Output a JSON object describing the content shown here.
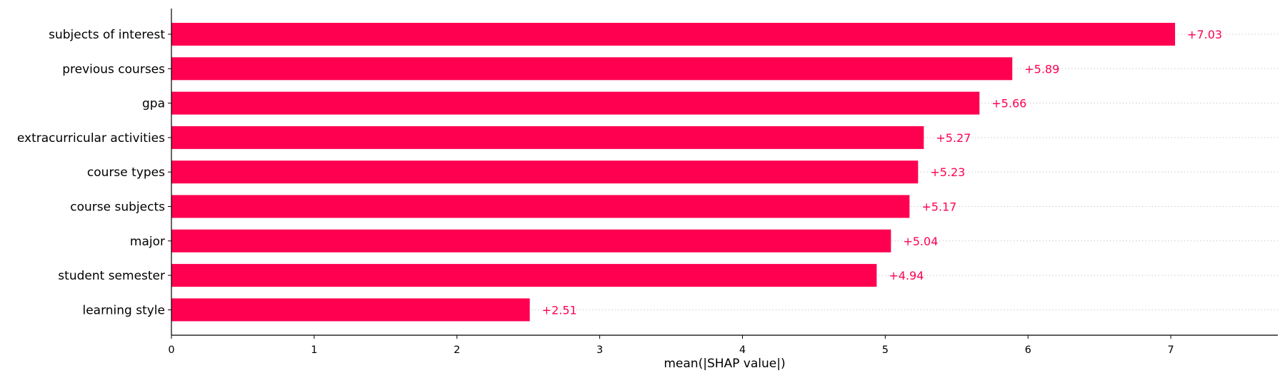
{
  "chart_data": {
    "type": "bar",
    "orientation": "horizontal",
    "categories": [
      "subjects of interest",
      "previous courses",
      "gpa",
      "extracurricular activities",
      "course types",
      "course subjects",
      "major",
      "student semester",
      "learning style"
    ],
    "values": [
      7.03,
      5.89,
      5.66,
      5.27,
      5.23,
      5.17,
      5.04,
      4.94,
      2.51
    ],
    "value_labels": [
      "+7.03",
      "+5.89",
      "+5.66",
      "+5.27",
      "+5.23",
      "+5.17",
      "+5.04",
      "+4.94",
      "+2.51"
    ],
    "xlabel": "mean(|SHAP value|)",
    "xlim": [
      0,
      7.75
    ],
    "xticks": [
      "0",
      "1",
      "2",
      "3",
      "4",
      "5",
      "6",
      "7"
    ],
    "bar_color": "#ff0051",
    "grid": false,
    "legend": "none"
  }
}
